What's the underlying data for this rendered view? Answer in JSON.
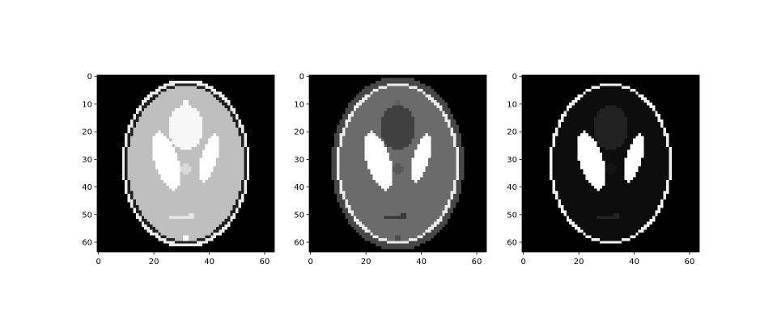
{
  "figure": {
    "panels": [
      {
        "id": "panel-1",
        "colormap": "gray",
        "ellipses": [
          {
            "cx": 32,
            "cy": 32,
            "rx": 23,
            "ry": 30.5,
            "value": 0.92
          },
          {
            "cx": 32,
            "cy": 32,
            "rx": 22,
            "ry": 29.0,
            "value": 0.12
          },
          {
            "cx": 32,
            "cy": 32,
            "rx": 21,
            "ry": 28.0,
            "value": 0.75
          },
          {
            "cx": 32,
            "cy": 19,
            "rx": 6.5,
            "ry": 8.0,
            "value": 0.97
          },
          {
            "cx": 25,
            "cy": 31,
            "rx": 4.2,
            "ry": 11.0,
            "rot": -18,
            "value": 1.0
          },
          {
            "cx": 40.5,
            "cy": 30,
            "rx": 3.0,
            "ry": 9.0,
            "rot": 18,
            "value": 1.0
          },
          {
            "cx": 32,
            "cy": 34,
            "rx": 1.6,
            "ry": 2.2,
            "value": 0.85
          },
          {
            "cx": 30,
            "cy": 51.5,
            "rx": 3.5,
            "ry": 0.8,
            "value": 0.9
          },
          {
            "cx": 34,
            "cy": 51,
            "rx": 1.2,
            "ry": 1.2,
            "value": 0.9
          },
          {
            "cx": 32,
            "cy": 10,
            "rx": 1.2,
            "ry": 1.0,
            "value": 0.98
          },
          {
            "cx": 32,
            "cy": 59,
            "rx": 1.0,
            "ry": 1.0,
            "value": 0.98
          }
        ]
      },
      {
        "id": "panel-2",
        "colormap": "gray",
        "ellipses": [
          {
            "cx": 32,
            "cy": 32,
            "rx": 24,
            "ry": 31.5,
            "value": 0.28
          },
          {
            "cx": 32,
            "cy": 32,
            "rx": 22,
            "ry": 29.0,
            "value": 0.92
          },
          {
            "cx": 32,
            "cy": 32,
            "rx": 21,
            "ry": 28.0,
            "value": 0.42
          },
          {
            "cx": 32,
            "cy": 19,
            "rx": 6.5,
            "ry": 8.0,
            "value": 0.25
          },
          {
            "cx": 25,
            "cy": 31,
            "rx": 4.2,
            "ry": 11.0,
            "rot": -18,
            "value": 1.0
          },
          {
            "cx": 40.5,
            "cy": 30,
            "rx": 3.0,
            "ry": 9.0,
            "rot": 18,
            "value": 1.0
          },
          {
            "cx": 32,
            "cy": 34,
            "rx": 1.6,
            "ry": 2.2,
            "value": 0.35
          },
          {
            "cx": 31,
            "cy": 51.5,
            "rx": 3.5,
            "ry": 0.8,
            "value": 0.22
          },
          {
            "cx": 34,
            "cy": 51,
            "rx": 1.2,
            "ry": 1.2,
            "value": 0.22
          },
          {
            "cx": 32,
            "cy": 10,
            "rx": 1.2,
            "ry": 1.0,
            "value": 0.38
          },
          {
            "cx": 32,
            "cy": 59,
            "rx": 1.2,
            "ry": 1.0,
            "value": 0.3
          }
        ]
      },
      {
        "id": "panel-3",
        "colormap": "gray",
        "ellipses": [
          {
            "cx": 32,
            "cy": 32,
            "rx": 22,
            "ry": 29.0,
            "value": 0.95
          },
          {
            "cx": 32,
            "cy": 32,
            "rx": 21,
            "ry": 28.0,
            "value": 0.05
          },
          {
            "cx": 32,
            "cy": 19,
            "rx": 6.5,
            "ry": 8.0,
            "value": 0.13
          },
          {
            "cx": 25,
            "cy": 31,
            "rx": 4.2,
            "ry": 11.0,
            "rot": -18,
            "value": 1.0
          },
          {
            "cx": 40.5,
            "cy": 30,
            "rx": 3.0,
            "ry": 9.0,
            "rot": 18,
            "value": 1.0
          },
          {
            "cx": 32,
            "cy": 34,
            "rx": 1.6,
            "ry": 2.2,
            "value": 0.08
          },
          {
            "cx": 31,
            "cy": 51.5,
            "rx": 3.5,
            "ry": 0.8,
            "value": 0.14
          },
          {
            "cx": 34,
            "cy": 51,
            "rx": 1.2,
            "ry": 1.2,
            "value": 0.14
          }
        ]
      }
    ],
    "axes": {
      "xticks": [
        "0",
        "20",
        "40",
        "60"
      ],
      "yticks": [
        "0",
        "10",
        "20",
        "30",
        "40",
        "50",
        "60"
      ],
      "image_size": 64
    }
  }
}
